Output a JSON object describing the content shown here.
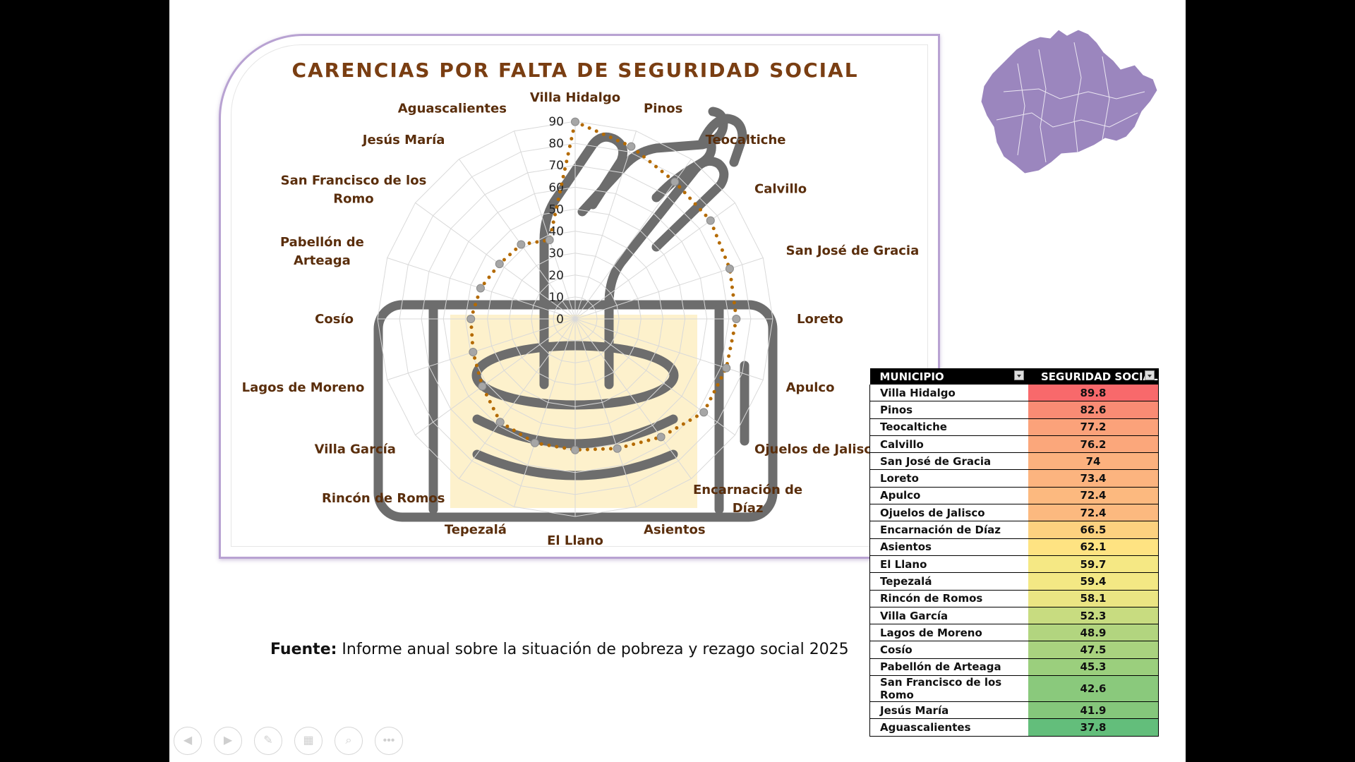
{
  "slide": {
    "source_bold": "Fuente:",
    "source_text": " Informe anual sobre la situación de pobreza y rezago social 2025"
  },
  "chart_data": {
    "type": "radar",
    "title": "CARENCIAS POR FALTA DE SEGURIDAD SOCIAL",
    "categories": [
      "Villa Hidalgo",
      "Pinos",
      "Teocaltiche",
      "Calvillo",
      "San José de Gracia",
      "Loreto",
      "Apulco",
      "Ojuelos de Jalisco",
      "Encarnación de Díaz",
      "Asientos",
      "El Llano",
      "Tepezalá",
      "Rincón de Romos",
      "Villa García",
      "Lagos de Moreno",
      "Cosío",
      "Pabellón de Arteaga",
      "San Francisco de los Romo",
      "Jesús María",
      "Aguascalientes"
    ],
    "label_lines": {
      "San Francisco de los Romo": [
        "San Francisco de los",
        "Romo"
      ],
      "Pabellón de Arteaga": [
        "Pabellón de",
        "Arteaga"
      ],
      "Encarnación de Díaz": [
        "Encarnación de",
        "Díaz"
      ]
    },
    "values": [
      89.8,
      82.6,
      77.2,
      76.2,
      74,
      73.4,
      72.4,
      72.4,
      66.5,
      62.1,
      59.7,
      59.4,
      58.1,
      52.3,
      48.9,
      47.5,
      45.3,
      42.6,
      41.9,
      37.8
    ],
    "ticks": [
      "0",
      "10",
      "20",
      "30",
      "40",
      "50",
      "60",
      "70",
      "80",
      "90"
    ],
    "rmax": 90,
    "grid": true,
    "series_color": "#b46a00"
  },
  "table": {
    "headers": [
      "MUNICIPIO",
      "SEGURIDAD SOCIAL"
    ],
    "rows": [
      {
        "name": "Villa Hidalgo",
        "value": "89.8",
        "color": "#f8696b"
      },
      {
        "name": "Pinos",
        "value": "82.6",
        "color": "#f98b74"
      },
      {
        "name": "Teocaltiche",
        "value": "77.2",
        "color": "#fba27a"
      },
      {
        "name": "Calvillo",
        "value": "76.2",
        "color": "#fba77b"
      },
      {
        "name": "San José de Gracia",
        "value": "74",
        "color": "#fcb17e"
      },
      {
        "name": "Loreto",
        "value": "73.4",
        "color": "#fcb47f"
      },
      {
        "name": "Apulco",
        "value": "72.4",
        "color": "#fcb97f"
      },
      {
        "name": "Ojuelos de Jalisco",
        "value": "72.4",
        "color": "#fcb97f"
      },
      {
        "name": "Encarnación de Díaz",
        "value": "66.5",
        "color": "#fdd17f"
      },
      {
        "name": "Asientos",
        "value": "62.1",
        "color": "#fee382"
      },
      {
        "name": "El Llano",
        "value": "59.7",
        "color": "#f5e884"
      },
      {
        "name": "Tepezalá",
        "value": "59.4",
        "color": "#f3e884"
      },
      {
        "name": "Rincón de Romos",
        "value": "58.1",
        "color": "#ebe583"
      },
      {
        "name": "Villa García",
        "value": "52.3",
        "color": "#c8dc80"
      },
      {
        "name": "Lagos de Moreno",
        "value": "48.9",
        "color": "#b2d57f"
      },
      {
        "name": "Cosío",
        "value": "47.5",
        "color": "#a9d27f"
      },
      {
        "name": "Pabellón de Arteaga",
        "value": "45.3",
        "color": "#9bcf7d"
      },
      {
        "name": "San Francisco de los Romo",
        "value": "42.6",
        "color": "#8ac97c"
      },
      {
        "name": "Jesús María",
        "value": "41.9",
        "color": "#85c77b"
      },
      {
        "name": "Aguascalientes",
        "value": "37.8",
        "color": "#63be7b"
      }
    ]
  },
  "map": {
    "fill": "#9b86be",
    "stroke": "#ffffff"
  },
  "controls": [
    {
      "name": "previous-slide-icon",
      "glyph": "◀"
    },
    {
      "name": "next-slide-icon",
      "glyph": "▶"
    },
    {
      "name": "pen-icon",
      "glyph": "✎"
    },
    {
      "name": "slide-sorter-icon",
      "glyph": "▦"
    },
    {
      "name": "zoom-icon",
      "glyph": "⌕"
    },
    {
      "name": "more-options-icon",
      "glyph": "•••"
    }
  ]
}
